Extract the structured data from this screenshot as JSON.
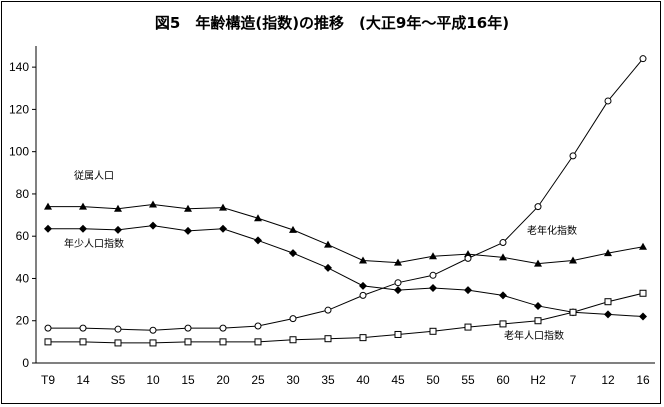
{
  "chart_data": {
    "type": "line",
    "title": "図5　年齢構造(指数)の推移　(大正9年～平成16年)",
    "xlabel": "",
    "ylabel": "",
    "ylim": [
      0,
      150
    ],
    "yticks": [
      0,
      20,
      40,
      60,
      80,
      100,
      120,
      140
    ],
    "grid": false,
    "legend": "inline labels",
    "categories": [
      "T9",
      "14",
      "S5",
      "10",
      "15",
      "20",
      "25",
      "30",
      "35",
      "40",
      "45",
      "50",
      "55",
      "60",
      "H2",
      "7",
      "12",
      "16"
    ],
    "series": [
      {
        "name": "従属人口",
        "marker": "filled-triangle",
        "values": [
          74,
          74,
          73,
          75,
          73,
          73.5,
          68.5,
          63,
          56,
          48.5,
          47.5,
          50.5,
          51.5,
          50,
          47,
          48.5,
          52,
          55
        ]
      },
      {
        "name": "年少人口指数",
        "marker": "filled-diamond",
        "values": [
          63.5,
          63.5,
          63,
          65,
          62.5,
          63.5,
          58,
          52,
          45,
          36.5,
          34.5,
          35.5,
          34.5,
          32,
          27,
          24,
          23,
          22
        ]
      },
      {
        "name": "老年化指数",
        "marker": "open-circle",
        "values": [
          16.5,
          16.5,
          16,
          15.5,
          16.5,
          16.5,
          17.5,
          21,
          25,
          32,
          38,
          41.5,
          49.5,
          57,
          74,
          98,
          124,
          144
        ]
      },
      {
        "name": "老年人口指数",
        "marker": "open-square",
        "values": [
          10,
          10,
          9.5,
          9.5,
          10,
          10,
          10,
          11,
          11.5,
          12,
          13.5,
          15,
          17,
          18.5,
          20,
          24,
          29,
          33
        ]
      }
    ]
  }
}
